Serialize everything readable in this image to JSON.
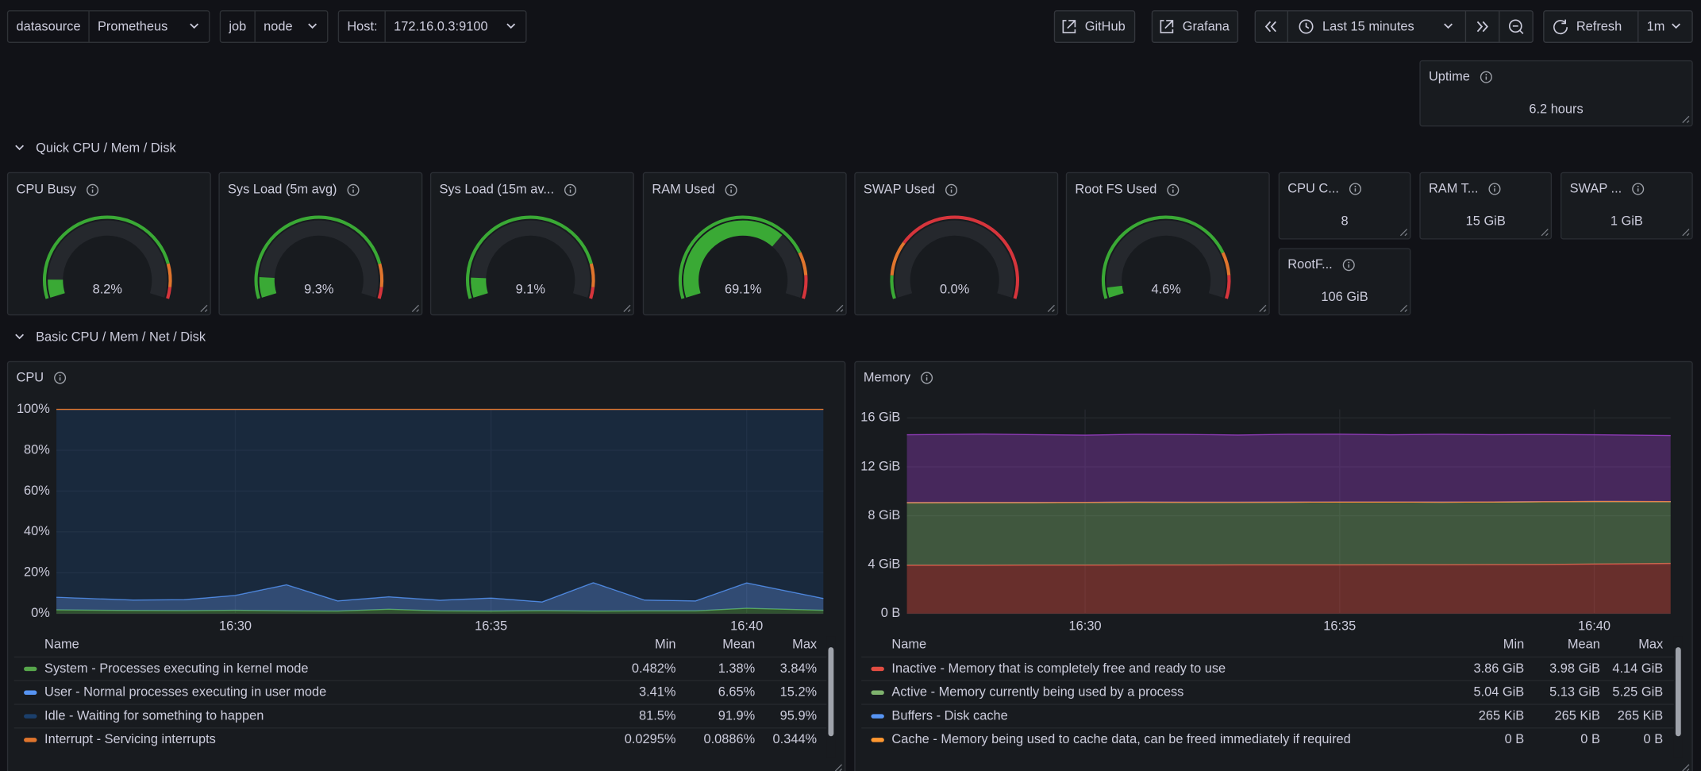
{
  "toolbar": {
    "variables": [
      {
        "label": "datasource",
        "value": "Prometheus"
      },
      {
        "label": "job",
        "value": "node"
      },
      {
        "label": "Host:",
        "value": "172.16.0.3:9100"
      }
    ],
    "links": [
      "GitHub",
      "Grafana"
    ],
    "time_range": "Last 15 minutes",
    "refresh": "Refresh",
    "refresh_interval": "1m"
  },
  "rows": [
    "Quick CPU / Mem / Disk",
    "Basic CPU / Mem / Net / Disk"
  ],
  "stats": [
    {
      "title": "Uptime",
      "value": "6.2 hours"
    },
    {
      "title": "CPU C...",
      "value": "8"
    },
    {
      "title": "RAM T...",
      "value": "15 GiB"
    },
    {
      "title": "SWAP ...",
      "value": "1 GiB"
    },
    {
      "title": "RootF...",
      "value": "106 GiB"
    }
  ],
  "gauges": [
    {
      "title": "CPU Busy",
      "value": 8.2,
      "label": "8.2%",
      "range": [
        0,
        100
      ],
      "thresholds": [
        {
          "value": 0,
          "color": "#3aa935"
        },
        {
          "value": 85,
          "color": "#e0752d"
        },
        {
          "value": 95,
          "color": "#d6353c"
        }
      ]
    },
    {
      "title": "Sys Load (5m avg)",
      "value": 9.3,
      "label": "9.3%",
      "range": [
        0,
        100
      ],
      "thresholds": [
        {
          "value": 0,
          "color": "#3aa935"
        },
        {
          "value": 85,
          "color": "#e0752d"
        },
        {
          "value": 95,
          "color": "#d6353c"
        }
      ]
    },
    {
      "title": "Sys Load (15m av...",
      "value": 9.1,
      "label": "9.1%",
      "range": [
        0,
        100
      ],
      "thresholds": [
        {
          "value": 0,
          "color": "#3aa935"
        },
        {
          "value": 85,
          "color": "#e0752d"
        },
        {
          "value": 95,
          "color": "#d6353c"
        }
      ]
    },
    {
      "title": "RAM Used",
      "value": 69.1,
      "label": "69.1%",
      "range": [
        0,
        100
      ],
      "thresholds": [
        {
          "value": 0,
          "color": "#3aa935"
        },
        {
          "value": 80,
          "color": "#e0752d"
        },
        {
          "value": 90,
          "color": "#d6353c"
        }
      ]
    },
    {
      "title": "SWAP Used",
      "value": 0,
      "label": "0.0%",
      "range": [
        0,
        100
      ],
      "thresholds": [
        {
          "value": 0,
          "color": "#3aa935"
        },
        {
          "value": 10,
          "color": "#e0752d"
        },
        {
          "value": 25,
          "color": "#d6353c"
        }
      ]
    },
    {
      "title": "Root FS Used",
      "value": 4.6,
      "label": "4.6%",
      "range": [
        0,
        100
      ],
      "thresholds": [
        {
          "value": 0,
          "color": "#3aa935"
        },
        {
          "value": 80,
          "color": "#e0752d"
        },
        {
          "value": 90,
          "color": "#d6353c"
        }
      ]
    }
  ],
  "chart_data": [
    {
      "type": "stacked-area",
      "title": "CPU",
      "x": [
        "16:27",
        "16:28",
        "16:29",
        "16:30",
        "16:31",
        "16:32",
        "16:33",
        "16:34",
        "16:35",
        "16:36",
        "16:37",
        "16:38",
        "16:39",
        "16:40",
        "16:41"
      ],
      "xticks": [
        "16:30",
        "16:35",
        "16:40"
      ],
      "ylim": [
        0,
        100
      ],
      "yticks": [
        {
          "value": 0,
          "label": "0%"
        },
        {
          "value": 20,
          "label": "20%"
        },
        {
          "value": 40,
          "label": "40%"
        },
        {
          "value": 60,
          "label": "60%"
        },
        {
          "value": 80,
          "label": "80%"
        },
        {
          "value": 100,
          "label": "100%"
        }
      ],
      "grid": true,
      "legend_columns": [
        "Name",
        "Min",
        "Mean",
        "Max"
      ],
      "series": [
        {
          "name": "System - Processes executing in kernel mode",
          "color": "#56a64b",
          "values": [
            1.8,
            1.5,
            1.4,
            1.6,
            1.3,
            1.2,
            2.1,
            1.3,
            1.2,
            1.4,
            1.2,
            1.3,
            1.3,
            2.6,
            1.6
          ],
          "stats": [
            "0.482%",
            "1.38%",
            "3.84%"
          ]
        },
        {
          "name": "User - Normal processes executing in user mode",
          "color": "#5794f2",
          "values": [
            6.2,
            5.1,
            5.4,
            7.3,
            12.8,
            5.0,
            6.1,
            5.2,
            6.4,
            4.3,
            13.9,
            5.3,
            4.9,
            12.4,
            5.8
          ],
          "stats": [
            "3.41%",
            "6.65%",
            "15.2%"
          ]
        },
        {
          "name": "Idle - Waiting for something to happen",
          "color": "#1b3f6b",
          "values": [
            91.9,
            93.3,
            93.1,
            91.0,
            85.8,
            93.7,
            91.7,
            93.4,
            92.3,
            94.2,
            84.8,
            93.3,
            93.7,
            84.9,
            92.5
          ],
          "stats": [
            "81.5%",
            "91.9%",
            "95.9%"
          ]
        },
        {
          "name": "Interrupt - Servicing interrupts",
          "color": "#e0752d",
          "values": [
            0.1,
            0.1,
            0.1,
            0.1,
            0.1,
            0.1,
            0.1,
            0.1,
            0.1,
            0.1,
            0.1,
            0.1,
            0.1,
            0.1,
            0.1
          ],
          "stats": [
            "0.0295%",
            "0.0886%",
            "0.344%"
          ]
        }
      ]
    },
    {
      "type": "stacked-area",
      "title": "Memory",
      "x": [
        "16:27",
        "16:28",
        "16:29",
        "16:30",
        "16:31",
        "16:32",
        "16:33",
        "16:34",
        "16:35",
        "16:36",
        "16:37",
        "16:38",
        "16:39",
        "16:40",
        "16:41"
      ],
      "xticks": [
        "16:30",
        "16:35",
        "16:40"
      ],
      "ylim": [
        0,
        16.7
      ],
      "yticks": [
        {
          "value": 0,
          "label": "0 B"
        },
        {
          "value": 4,
          "label": "4 GiB"
        },
        {
          "value": 8,
          "label": "8 GiB"
        },
        {
          "value": 12,
          "label": "12 GiB"
        },
        {
          "value": 16,
          "label": "16 GiB"
        }
      ],
      "grid": true,
      "legend_columns": [
        "Name",
        "Min",
        "Mean",
        "Max"
      ],
      "series": [
        {
          "name": "Inactive - Memory that is completely free and ready to use",
          "color": "#e24d42",
          "values": [
            3.95,
            3.95,
            3.96,
            3.96,
            3.97,
            3.97,
            3.98,
            3.98,
            3.98,
            3.99,
            3.99,
            4.0,
            4.01,
            4.05,
            4.1
          ],
          "stats": [
            "3.86 GiB",
            "3.98 GiB",
            "4.14 GiB"
          ]
        },
        {
          "name": "Active - Memory currently being used by a process",
          "color": "#7eb26d",
          "values": [
            5.12,
            5.13,
            5.12,
            5.13,
            5.14,
            5.13,
            5.12,
            5.13,
            5.14,
            5.13,
            5.12,
            5.13,
            5.14,
            5.12,
            5.06
          ],
          "stats": [
            "5.04 GiB",
            "5.13 GiB",
            "5.25 GiB"
          ]
        },
        {
          "name": "Buffers - Disk cache",
          "color": "#5794f2",
          "values": [
            0.00025,
            0.00025,
            0.00025,
            0.00025,
            0.00025,
            0.00025,
            0.00025,
            0.00025,
            0.00025,
            0.00025,
            0.00025,
            0.00025,
            0.00025,
            0.00025,
            0.00025
          ],
          "stats": [
            "265 KiB",
            "265 KiB",
            "265 KiB"
          ]
        },
        {
          "name": "Cache - Memory being used to cache data, can be freed immediately if required",
          "color": "#ff9830",
          "values": [
            0,
            0,
            0,
            0,
            0,
            0,
            0,
            0,
            0,
            0,
            0,
            0,
            0,
            0,
            0
          ],
          "stats": [
            "0 B",
            "0 B",
            "0 B"
          ]
        },
        {
          "color": "#8f3bb8",
          "values": [
            5.55,
            5.6,
            5.55,
            5.5,
            5.55,
            5.55,
            5.5,
            5.55,
            5.55,
            5.5,
            5.55,
            5.5,
            5.5,
            5.45,
            5.4
          ]
        }
      ]
    }
  ]
}
